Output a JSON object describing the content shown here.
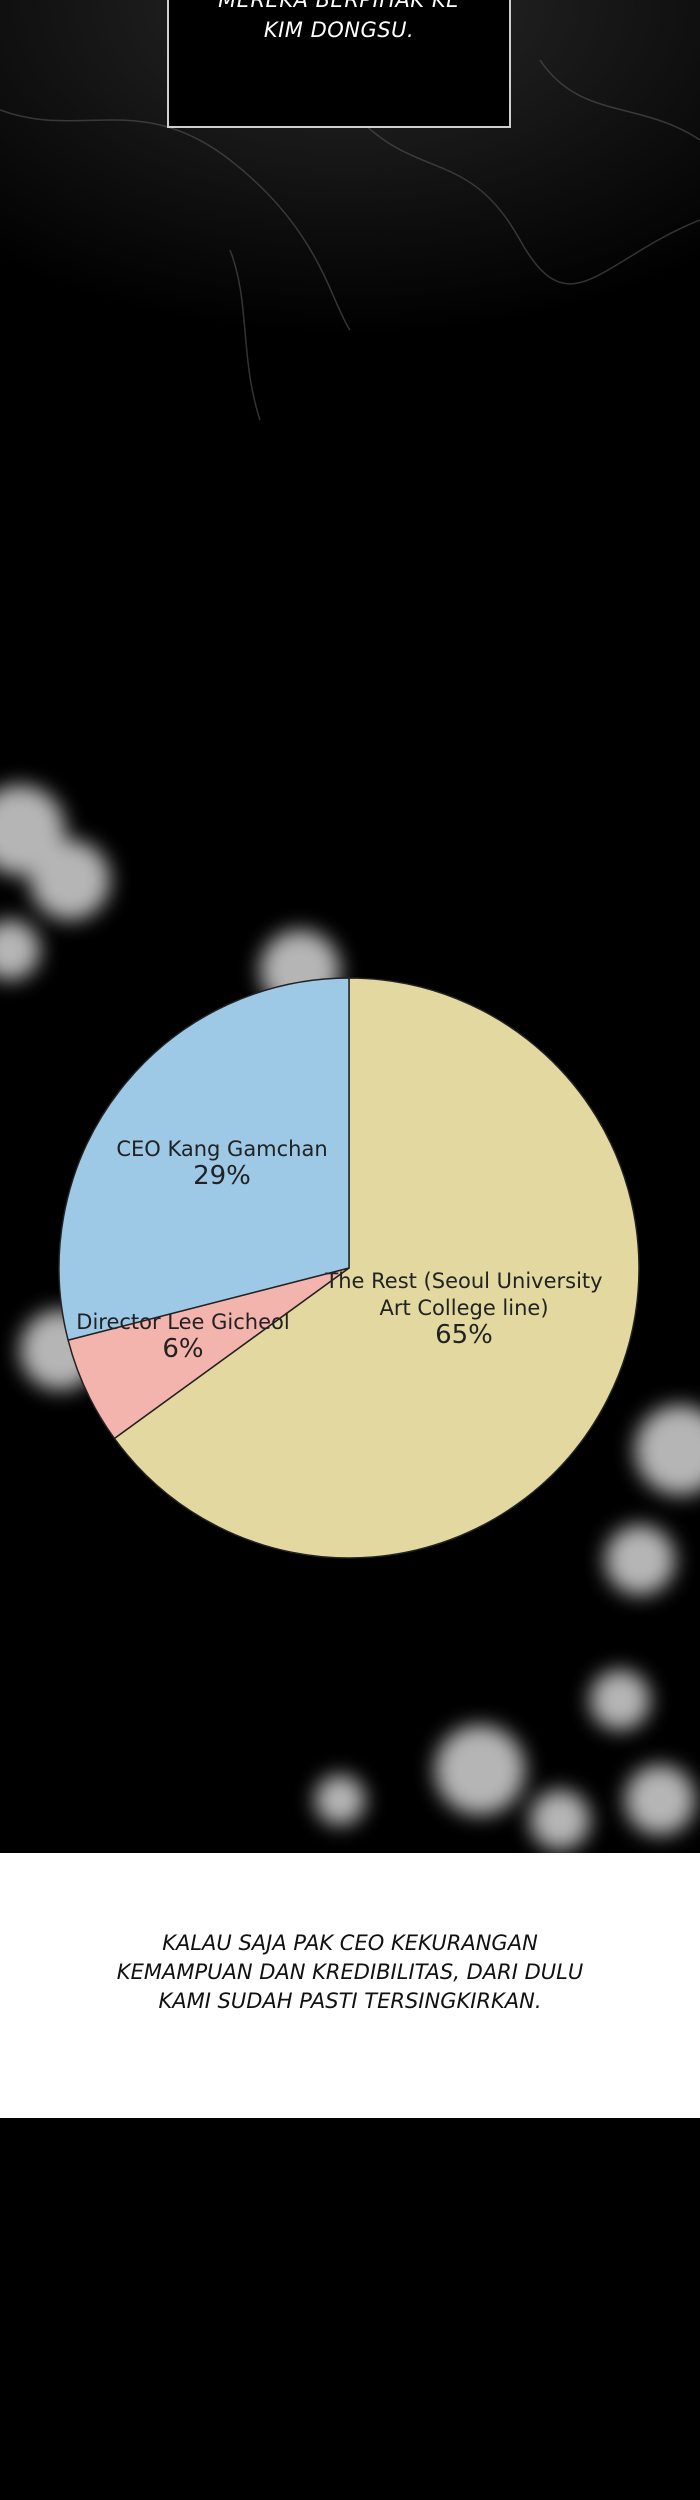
{
  "top_caption": {
    "lines": [
      "MEREKA BERPIHAK KE",
      "KIM DONGSU."
    ]
  },
  "chart_data": {
    "type": "pie",
    "categories": [
      "The Rest (Seoul University Art College line)",
      "Director Lee Gicheol",
      "CEO Kang Gamchan"
    ],
    "values": [
      65,
      6,
      29
    ],
    "value_labels": [
      "65%",
      "6%",
      "29%"
    ],
    "colors": [
      "#e3d9a0",
      "#f4b4ae",
      "#9dc8e6"
    ]
  },
  "bottom_caption": {
    "lines": [
      "KALAU SAJA PAK CEO KEKURANGAN",
      "KEMAMPUAN DAN KREDIBILITAS, DARI DULU",
      "KAMI SUDAH PASTI TERSINGKIRKAN."
    ]
  }
}
